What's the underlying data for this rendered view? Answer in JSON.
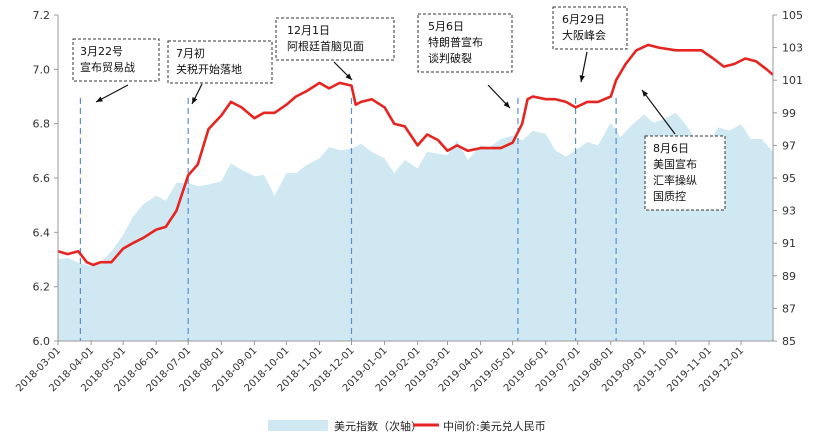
{
  "chart_data": {
    "type": "line",
    "title": "",
    "xlabel": "",
    "ylabel_left": "",
    "ylabel_right": "",
    "x_range": [
      "2018-03-01",
      "2019-12-31"
    ],
    "x_tick_labels": [
      "2018-03-01",
      "2018-04-01",
      "2018-05-01",
      "2018-06-01",
      "2018-07-01",
      "2018-08-01",
      "2018-09-01",
      "2018-10-01",
      "2018-11-01",
      "2018-12-01",
      "2019-01-01",
      "2019-02-01",
      "2019-03-01",
      "2019-04-01",
      "2019-05-01",
      "2019-06-01",
      "2019-07-01",
      "2019-08-01",
      "2019-09-01",
      "2019-10-01",
      "2019-11-01",
      "2019-12-01"
    ],
    "y_left": {
      "range": [
        6.0,
        7.2
      ],
      "ticks": [
        "6.0",
        "6.2",
        "6.4",
        "6.6",
        "6.8",
        "7.0",
        "7.2"
      ]
    },
    "y_right": {
      "range": [
        85,
        105
      ],
      "ticks": [
        "85",
        "87",
        "89",
        "91",
        "93",
        "95",
        "97",
        "99",
        "101",
        "103",
        "105"
      ]
    },
    "grid": false,
    "legend_position": "bottom",
    "colors": {
      "usdcny_line": "#e52521",
      "dxy_area": "#cfe8f2",
      "event_line": "#5b8fd0"
    },
    "series": [
      {
        "name": "美元指数（次轴）",
        "type": "area",
        "axis": "right",
        "points": [
          [
            "2018-03-01",
            90.0
          ],
          [
            "2018-03-10",
            90.1
          ],
          [
            "2018-03-20",
            89.8
          ],
          [
            "2018-04-01",
            89.6
          ],
          [
            "2018-04-10",
            89.8
          ],
          [
            "2018-04-20",
            90.5
          ],
          [
            "2018-05-01",
            91.5
          ],
          [
            "2018-05-10",
            92.6
          ],
          [
            "2018-05-20",
            93.4
          ],
          [
            "2018-06-01",
            93.9
          ],
          [
            "2018-06-10",
            93.6
          ],
          [
            "2018-06-20",
            94.7
          ],
          [
            "2018-07-01",
            94.7
          ],
          [
            "2018-07-10",
            94.5
          ],
          [
            "2018-07-20",
            94.6
          ],
          [
            "2018-08-01",
            94.8
          ],
          [
            "2018-08-10",
            95.9
          ],
          [
            "2018-08-20",
            95.5
          ],
          [
            "2018-09-01",
            95.1
          ],
          [
            "2018-09-10",
            95.2
          ],
          [
            "2018-09-20",
            93.9
          ],
          [
            "2018-10-01",
            95.3
          ],
          [
            "2018-10-10",
            95.3
          ],
          [
            "2018-10-20",
            95.8
          ],
          [
            "2018-11-01",
            96.2
          ],
          [
            "2018-11-10",
            96.9
          ],
          [
            "2018-11-20",
            96.7
          ],
          [
            "2018-12-01",
            96.8
          ],
          [
            "2018-12-10",
            97.1
          ],
          [
            "2018-12-20",
            96.6
          ],
          [
            "2019-01-01",
            96.2
          ],
          [
            "2019-01-10",
            95.3
          ],
          [
            "2019-01-20",
            96.1
          ],
          [
            "2019-02-01",
            95.6
          ],
          [
            "2019-02-10",
            96.6
          ],
          [
            "2019-02-20",
            96.5
          ],
          [
            "2019-03-01",
            96.4
          ],
          [
            "2019-03-10",
            97.3
          ],
          [
            "2019-03-20",
            96.1
          ],
          [
            "2019-04-01",
            97.0
          ],
          [
            "2019-04-10",
            96.9
          ],
          [
            "2019-04-20",
            97.4
          ],
          [
            "2019-05-01",
            97.6
          ],
          [
            "2019-05-10",
            97.3
          ],
          [
            "2019-05-20",
            97.9
          ],
          [
            "2019-06-01",
            97.7
          ],
          [
            "2019-06-10",
            96.7
          ],
          [
            "2019-06-20",
            96.3
          ],
          [
            "2019-07-01",
            96.8
          ],
          [
            "2019-07-10",
            97.2
          ],
          [
            "2019-07-20",
            97.0
          ],
          [
            "2019-08-01",
            98.4
          ],
          [
            "2019-08-10",
            97.5
          ],
          [
            "2019-08-20",
            98.2
          ],
          [
            "2019-09-01",
            98.9
          ],
          [
            "2019-09-10",
            98.4
          ],
          [
            "2019-09-20",
            98.6
          ],
          [
            "2019-10-01",
            99.0
          ],
          [
            "2019-10-10",
            98.3
          ],
          [
            "2019-10-20",
            97.3
          ],
          [
            "2019-11-01",
            97.2
          ],
          [
            "2019-11-10",
            98.1
          ],
          [
            "2019-11-20",
            97.9
          ],
          [
            "2019-12-01",
            98.3
          ],
          [
            "2019-12-10",
            97.4
          ],
          [
            "2019-12-20",
            97.4
          ],
          [
            "2019-12-31",
            96.6
          ]
        ]
      },
      {
        "name": "中间价:美元兑人民币",
        "type": "line",
        "axis": "left",
        "points": [
          [
            "2018-03-01",
            6.33
          ],
          [
            "2018-03-10",
            6.32
          ],
          [
            "2018-03-20",
            6.33
          ],
          [
            "2018-03-28",
            6.29
          ],
          [
            "2018-04-03",
            6.28
          ],
          [
            "2018-04-10",
            6.29
          ],
          [
            "2018-04-20",
            6.29
          ],
          [
            "2018-05-01",
            6.34
          ],
          [
            "2018-05-10",
            6.36
          ],
          [
            "2018-05-20",
            6.38
          ],
          [
            "2018-06-01",
            6.41
          ],
          [
            "2018-06-10",
            6.42
          ],
          [
            "2018-06-20",
            6.48
          ],
          [
            "2018-07-01",
            6.61
          ],
          [
            "2018-07-10",
            6.65
          ],
          [
            "2018-07-20",
            6.78
          ],
          [
            "2018-08-01",
            6.83
          ],
          [
            "2018-08-10",
            6.88
          ],
          [
            "2018-08-20",
            6.86
          ],
          [
            "2018-09-01",
            6.82
          ],
          [
            "2018-09-10",
            6.84
          ],
          [
            "2018-09-20",
            6.84
          ],
          [
            "2018-10-01",
            6.87
          ],
          [
            "2018-10-10",
            6.9
          ],
          [
            "2018-10-20",
            6.92
          ],
          [
            "2018-11-01",
            6.95
          ],
          [
            "2018-11-10",
            6.93
          ],
          [
            "2018-11-20",
            6.95
          ],
          [
            "2018-12-01",
            6.94
          ],
          [
            "2018-12-05",
            6.87
          ],
          [
            "2018-12-10",
            6.88
          ],
          [
            "2018-12-20",
            6.89
          ],
          [
            "2019-01-01",
            6.86
          ],
          [
            "2019-01-10",
            6.8
          ],
          [
            "2019-01-20",
            6.79
          ],
          [
            "2019-02-01",
            6.72
          ],
          [
            "2019-02-10",
            6.76
          ],
          [
            "2019-02-20",
            6.74
          ],
          [
            "2019-03-01",
            6.7
          ],
          [
            "2019-03-10",
            6.72
          ],
          [
            "2019-03-20",
            6.7
          ],
          [
            "2019-04-01",
            6.71
          ],
          [
            "2019-04-10",
            6.71
          ],
          [
            "2019-04-20",
            6.71
          ],
          [
            "2019-05-01",
            6.73
          ],
          [
            "2019-05-10",
            6.8
          ],
          [
            "2019-05-15",
            6.89
          ],
          [
            "2019-05-20",
            6.9
          ],
          [
            "2019-06-01",
            6.89
          ],
          [
            "2019-06-10",
            6.89
          ],
          [
            "2019-06-20",
            6.88
          ],
          [
            "2019-06-29",
            6.86
          ],
          [
            "2019-07-10",
            6.88
          ],
          [
            "2019-07-20",
            6.88
          ],
          [
            "2019-08-01",
            6.9
          ],
          [
            "2019-08-06",
            6.96
          ],
          [
            "2019-08-15",
            7.02
          ],
          [
            "2019-08-25",
            7.07
          ],
          [
            "2019-09-05",
            7.09
          ],
          [
            "2019-09-15",
            7.08
          ],
          [
            "2019-10-01",
            7.07
          ],
          [
            "2019-10-15",
            7.07
          ],
          [
            "2019-10-25",
            7.07
          ],
          [
            "2019-11-05",
            7.04
          ],
          [
            "2019-11-15",
            7.01
          ],
          [
            "2019-11-25",
            7.02
          ],
          [
            "2019-12-05",
            7.04
          ],
          [
            "2019-12-15",
            7.03
          ],
          [
            "2019-12-25",
            7.0
          ],
          [
            "2019-12-31",
            6.98
          ]
        ]
      }
    ],
    "events": [
      {
        "date": "2018-03-22",
        "label_lines": [
          "3月22号",
          "宣布贸易战"
        ]
      },
      {
        "date": "2018-07-01",
        "label_lines": [
          "7月初",
          "关税开始落地"
        ]
      },
      {
        "date": "2018-12-01",
        "label_lines": [
          "12月1日",
          "阿根廷首脑见面"
        ]
      },
      {
        "date": "2019-05-06",
        "label_lines": [
          "5月6日",
          "特朗普宣布",
          "谈判破裂"
        ]
      },
      {
        "date": "2019-06-29",
        "label_lines": [
          "6月29日",
          "大阪峰会"
        ]
      },
      {
        "date": "2019-08-06",
        "label_lines": [
          "8月6日",
          "美国宣布",
          "汇率操纵",
          "国质控"
        ]
      }
    ]
  }
}
